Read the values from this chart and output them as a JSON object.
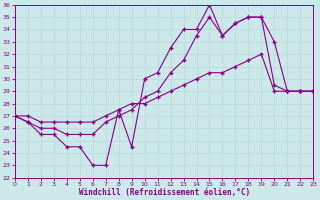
{
  "xlabel": "Windchill (Refroidissement éolien,°C)",
  "bg_color": "#cce8e8",
  "line_color": "#880088",
  "grid_color": "#b8dede",
  "xlim": [
    0,
    23
  ],
  "ylim": [
    22,
    36
  ],
  "xticks": [
    0,
    1,
    2,
    3,
    4,
    5,
    6,
    7,
    8,
    9,
    10,
    11,
    12,
    13,
    14,
    15,
    16,
    17,
    18,
    19,
    20,
    21,
    22,
    23
  ],
  "yticks": [
    22,
    23,
    24,
    25,
    26,
    27,
    28,
    29,
    30,
    31,
    32,
    33,
    34,
    35,
    36
  ],
  "line1_x": [
    0,
    1,
    2,
    3,
    4,
    5,
    6,
    7,
    8,
    9,
    10,
    11,
    12,
    13,
    14,
    15,
    16,
    17,
    18,
    19,
    20,
    21,
    22,
    23
  ],
  "line1_y": [
    27.0,
    26.5,
    25.5,
    25.5,
    24.5,
    24.5,
    23.0,
    23.0,
    27.5,
    24.5,
    30.0,
    30.5,
    32.5,
    34.0,
    34.0,
    36.0,
    33.5,
    34.5,
    35.0,
    35.0,
    29.5,
    29.0,
    29.0,
    29.0
  ],
  "line2_x": [
    0,
    1,
    2,
    3,
    4,
    5,
    6,
    7,
    8,
    9,
    10,
    11,
    12,
    13,
    14,
    15,
    16,
    17,
    18,
    19,
    20,
    21,
    22,
    23
  ],
  "line2_y": [
    27.0,
    27.0,
    26.5,
    26.5,
    26.5,
    26.5,
    26.5,
    27.0,
    27.5,
    28.0,
    28.0,
    28.5,
    29.0,
    29.5,
    30.0,
    30.5,
    30.5,
    31.0,
    31.5,
    32.0,
    29.0,
    29.0,
    29.0,
    29.0
  ],
  "line3_x": [
    0,
    1,
    2,
    3,
    4,
    5,
    6,
    7,
    8,
    9,
    10,
    11,
    12,
    13,
    14,
    15,
    16,
    17,
    18,
    19,
    20,
    21,
    22,
    23
  ],
  "line3_y": [
    27.0,
    26.5,
    26.0,
    26.0,
    25.5,
    25.5,
    25.5,
    26.5,
    27.0,
    27.5,
    28.5,
    29.0,
    30.5,
    31.5,
    33.5,
    35.0,
    33.5,
    34.5,
    35.0,
    35.0,
    33.0,
    29.0,
    29.0,
    29.0
  ],
  "marker": "+"
}
